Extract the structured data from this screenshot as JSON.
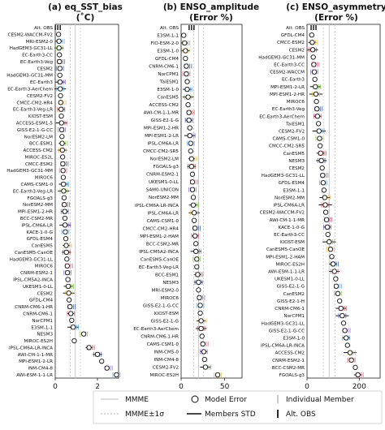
{
  "chart_data": [
    {
      "type": "scatter",
      "title_line1": "(a) eq_SST_bias",
      "title_line2": "(˚C)",
      "xlim": [
        0,
        3
      ],
      "xticks": [
        "0",
        "2"
      ],
      "xtick_values": [
        0,
        2
      ],
      "mmme": 0.95,
      "models": [
        "Alt. OBS",
        "CESM2-WACCM-FV2",
        "MRI-ESM2-0",
        "HadGEM3-GC31-LL",
        "EC-Earth3-CC",
        "EC-Earth3-Veg",
        "CESM2",
        "HadGEM3-GC31-MM",
        "EC-Earth3",
        "EC-Earth3-AerChem",
        "CESM2-FV2",
        "CMCC-CM2-HR4",
        "EC-Earth3-Veg-LR",
        "KIOST-ESM",
        "ACCESS-ESM1-5",
        "GISS-E2-1-G-CC",
        "NorESM2-LM",
        "BCC-ESM1",
        "ACCESS-CM2",
        "MIROC-ES2L",
        "CMCC-ESM2",
        "HadGEM3-GC31-MM",
        "MIROC6",
        "CAMS-CSM1-0",
        "EC-Earth3-Veg-LR",
        "FGOALS-g3",
        "NorESM2-MM",
        "MPI-ESM1-2-HR",
        "BCC-CSM2-MR",
        "IPSL-CM6A-LR",
        "KACE-1-0-G",
        "GFDL-ESM4",
        "CanESM5",
        "CanESM5-CanOE",
        "HadGEM3-GC31-LL",
        "MIROC6",
        "CNRM-ESM2-1",
        "IPSL-CM5A2-INCA",
        "UKESM1-0-LL",
        "CESM2",
        "GFDL-CM4",
        "CNRM-CM6-1-HR",
        "CNRM-CM6-1",
        "NorCPM1",
        "E3SM-1-1",
        "NESM3",
        "MIROC-ES2H",
        "IPSL-CM6A-LR-INCA",
        "AWI-CM-1-1-MR",
        "MPI-ESM1-2-LR",
        "INM-CM4-8",
        "AWI-ESM-1-1-LR"
      ],
      "values": [
        0.12,
        0.16,
        0.18,
        0.18,
        0.2,
        0.2,
        0.22,
        0.22,
        0.23,
        0.24,
        0.25,
        0.26,
        0.28,
        0.29,
        0.3,
        0.31,
        0.32,
        0.33,
        0.34,
        0.35,
        0.36,
        0.37,
        0.38,
        0.39,
        0.4,
        0.42,
        0.43,
        0.45,
        0.46,
        0.47,
        0.48,
        0.5,
        0.52,
        0.53,
        0.55,
        0.57,
        0.58,
        0.6,
        0.62,
        0.64,
        0.66,
        0.7,
        0.74,
        0.78,
        0.85,
        1.35,
        0.9,
        1.6,
        2.0,
        2.2,
        2.45,
        2.9
      ]
    },
    {
      "type": "scatter",
      "title_line1": "(b) ENSO_amplitude",
      "title_line2": "(Error %)",
      "xlim": [
        0,
        70
      ],
      "xticks": [
        "0",
        "50"
      ],
      "xtick_values": [
        0,
        50
      ],
      "mmme": 20,
      "models": [
        "Alt. OBS",
        "E3SM-1-1",
        "FIO-ESM-2-0",
        "E3SM-1-0",
        "GFDL-CM4",
        "CNRM-CM6-1",
        "NorCPM1",
        "TaiESM1",
        "E3SM-1-0",
        "CanESM5",
        "ACCESS-CM2",
        "AWI-CM-1-1-MR",
        "GISS-E2-1-G",
        "MPI-ESM1-2-HR",
        "MPI-ESM1-2-LR",
        "IPSL-CM6A-LR",
        "CMCC-CM2-SR5",
        "NorESM2-LM",
        "FGOALS-g3",
        "CNRM-ESM2-1",
        "UKESM1-0-LL",
        "SAM0-UNICON",
        "NorESM2-MM",
        "IPSL-CM6A-LR-INCA",
        "IPSL-CM6A-LR",
        "CAMS-CSM1-0",
        "CMCC-CM2-HR4",
        "MPI-ESM1-2-HAM",
        "BCC-CSM2-MR",
        "IPSL-CM5A2-INCA",
        "CanESM5-CanOE",
        "EC-Earth3-Veg-LR",
        "BCC-ESM1",
        "NESM3",
        "MRI-ESM2-0",
        "MIROC6",
        "GISS-E2-1-G-CC",
        "KIOST-ESM",
        "GISS-E2-1-G",
        "EC-Earth3-AerChem",
        "CNRM-CM6-1-HR",
        "CAMS-CSM1-0",
        "INM-CM5-0",
        "INM-CM4-8",
        "CESM2-FV2",
        "MIROC-ES2H"
      ],
      "values": [
        12,
        3,
        4,
        5,
        5,
        6,
        6,
        7,
        7,
        8,
        8,
        9,
        9,
        10,
        10,
        11,
        11,
        12,
        12,
        13,
        13,
        13,
        14,
        14,
        15,
        15,
        16,
        16,
        17,
        17,
        18,
        18,
        19,
        20,
        20,
        21,
        22,
        22,
        23,
        23,
        24,
        25,
        26,
        27,
        28,
        42
      ]
    },
    {
      "type": "scatter",
      "title_line1": "(c) ENSO_asymmetry",
      "title_line2": "(Error %)",
      "xlim": [
        0,
        280
      ],
      "xticks": [
        "0",
        "200"
      ],
      "xtick_values": [
        0,
        200
      ],
      "mmme": 85,
      "models": [
        "Alt. OBS",
        "GFDL-CM4",
        "CMCC-ESM2",
        "CESM2",
        "HadGEM3-GC31-MM",
        "EC-Earth3-CC",
        "CESM2-WACCM",
        "EC-Earth3",
        "MPI-ESM1-2-LR",
        "MPI-ESM1-2-HR",
        "MIROC6",
        "EC-Earth3-Veg",
        "EC-Earth3-AerChem",
        "TaiESM1",
        "CESM2-FV2",
        "CAMS-CSM1-0",
        "CMCC-CM2-SR5",
        "CanESM5",
        "NESM3",
        "CESM2",
        "HadGEM3-GC31-LL",
        "GFDL-ESM4",
        "E3SM-1-1",
        "NorESM2-MM",
        "IPSL-CM6A-LR",
        "CESM2-WACCM-FV2",
        "AWI-CM-1-1-MR",
        "KACE-1-0-G",
        "EC-Earth3-CC",
        "KIOST-ESM",
        "CanESM5-CanOE",
        "MPI-ESM1-2-HAM",
        "MIROC-ES2H",
        "AWI-ESM-1-1-LR",
        "UKESM1-0-LL",
        "GISS-E2-1-G",
        "CanESM2",
        "GISS-E2-1-H",
        "CNRM-CM6-1",
        "NorCPM1",
        "HadGEM3-GC31-LL",
        "GISS-E2-1-G-CC",
        "E3SM-1-0",
        "IPSL-CM6A-LR-INCA",
        "ACCESS-CM2",
        "CNRM-ESM2-1",
        "BCC-CSM2-MR",
        "FGOALS-g3"
      ],
      "values": [
        25,
        18,
        20,
        22,
        24,
        26,
        28,
        30,
        32,
        34,
        36,
        38,
        40,
        44,
        46,
        48,
        50,
        52,
        55,
        58,
        60,
        62,
        65,
        68,
        70,
        72,
        75,
        78,
        80,
        85,
        90,
        95,
        100,
        105,
        110,
        112,
        118,
        125,
        130,
        135,
        140,
        145,
        150,
        155,
        165,
        170,
        185,
        195
      ]
    }
  ],
  "legend": {
    "mmme": "MMME",
    "mmme_sigma": "MMME±1σ",
    "model_error": "Model Error",
    "members_std": "Members STD",
    "individual_member": "Individual Member",
    "alt_obs": "Alt. OBS"
  },
  "colors": {
    "mmme_line": "#c8c8c8",
    "sigma_line": "#c8c8c8",
    "members_std": "#111111",
    "member_ticks": [
      "#d85a8c",
      "#8a6ad0",
      "#5aa0d8",
      "#7fbf4a",
      "#e0b84a",
      "#c04040",
      "#3a5aa8"
    ]
  }
}
